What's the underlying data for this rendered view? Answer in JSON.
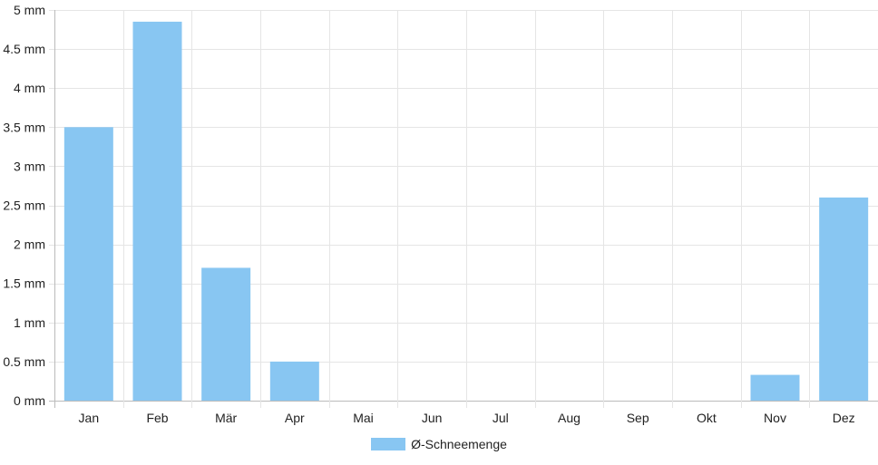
{
  "chart_data": {
    "type": "bar",
    "categories": [
      "Jan",
      "Feb",
      "Mär",
      "Apr",
      "Mai",
      "Jun",
      "Jul",
      "Aug",
      "Sep",
      "Okt",
      "Nov",
      "Dez"
    ],
    "series": [
      {
        "name": "Ø-Schneemenge",
        "values": [
          3.5,
          4.85,
          1.7,
          0.5,
          0,
          0,
          0,
          0,
          0,
          0,
          0.33,
          2.6
        ],
        "color": "#88c6f2"
      }
    ],
    "ylim": [
      0,
      5
    ],
    "y_ticks": [
      "0 mm",
      "0.5 mm",
      "1 mm",
      "1.5 mm",
      "2 mm",
      "2.5 mm",
      "3 mm",
      "3.5 mm",
      "4 mm",
      "4.5 mm",
      "5 mm"
    ],
    "y_tick_values": [
      0,
      0.5,
      1,
      1.5,
      2,
      2.5,
      3,
      3.5,
      4,
      4.5,
      5
    ],
    "grid": true,
    "legend_position": "bottom",
    "gridline_color": "#e5e5e5"
  }
}
